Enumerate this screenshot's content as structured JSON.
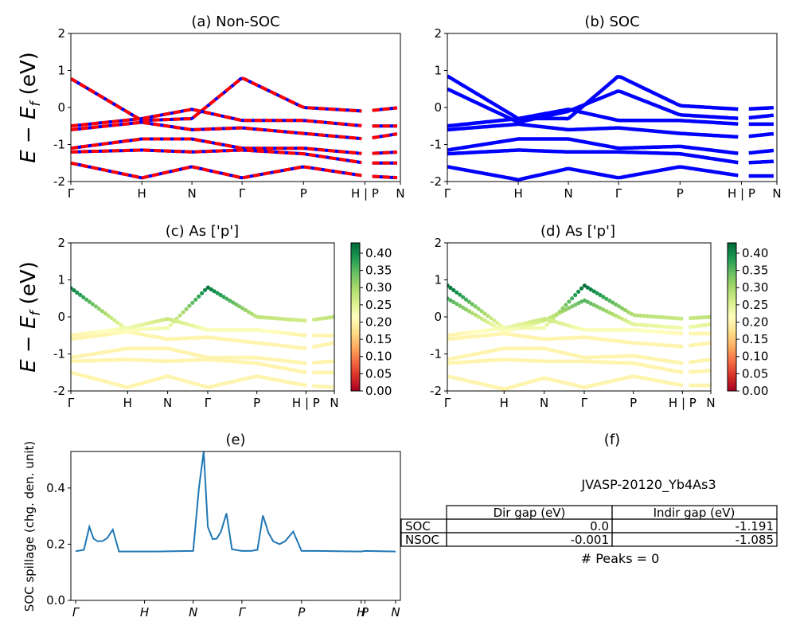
{
  "chart_data": [
    {
      "id": "a",
      "type": "line",
      "title": "(a) Non-SOC",
      "ylabel": "E − E_f (eV)",
      "ylim": [
        -2,
        2
      ],
      "yticks": [
        -2,
        -1,
        0,
        1,
        2
      ],
      "xtick_labels": [
        "Γ",
        "H",
        "N",
        "Γ",
        "P",
        "H | P",
        "N"
      ],
      "path_segments": [
        {
          "from": "Γ",
          "to": "H",
          "length": 1.0
        },
        {
          "from": "H",
          "to": "N",
          "length": 0.707
        },
        {
          "from": "N",
          "to": "Γ",
          "length": 0.707
        },
        {
          "from": "Γ",
          "to": "P",
          "length": 0.866
        },
        {
          "from": "P",
          "to": "H",
          "length": 0.866
        },
        {
          "from": "P",
          "to": "N",
          "length": 0.5
        }
      ],
      "band_colors": [
        "#0000ff",
        "#ff0000"
      ],
      "line_style": "blue solid overlaid with red dashed",
      "bands": [
        {
          "name": "",
          "x": [
            0,
            1.0,
            1.707,
            2.414,
            3.28,
            4.146,
            4.646
          ],
          "y": [
            0.78,
            -0.35,
            -0.3,
            0.8,
            0.0,
            -0.1,
            0.0
          ]
        },
        {
          "name": "",
          "x": [
            0,
            1.0,
            1.707,
            2.414,
            3.28,
            4.146,
            4.646
          ],
          "y": [
            -0.5,
            -0.3,
            -0.05,
            -0.35,
            -0.35,
            -0.5,
            -0.5
          ]
        },
        {
          "name": "",
          "x": [
            0,
            1.0,
            1.707,
            2.414,
            3.28,
            4.146,
            4.646
          ],
          "y": [
            -0.6,
            -0.4,
            -0.6,
            -0.55,
            -0.7,
            -0.85,
            -0.7
          ]
        },
        {
          "name": "",
          "x": [
            0,
            1.0,
            1.707,
            2.414,
            3.28,
            4.146,
            4.646
          ],
          "y": [
            -1.1,
            -0.85,
            -0.85,
            -1.1,
            -1.1,
            -1.25,
            -1.2
          ]
        },
        {
          "name": "",
          "x": [
            0,
            1.0,
            1.707,
            2.414,
            3.28,
            4.146,
            4.646
          ],
          "y": [
            -1.2,
            -1.15,
            -1.2,
            -1.15,
            -1.25,
            -1.5,
            -1.5
          ]
        },
        {
          "name": "",
          "x": [
            0,
            1.0,
            1.707,
            2.414,
            3.28,
            4.146,
            4.646
          ],
          "y": [
            -1.5,
            -1.9,
            -1.6,
            -1.9,
            -1.6,
            -1.85,
            -1.9
          ]
        }
      ]
    },
    {
      "id": "b",
      "type": "line",
      "title": "(b) SOC",
      "ylabel": "",
      "ylim": [
        -2,
        2
      ],
      "yticks": [
        -2,
        -1,
        0,
        1,
        2
      ],
      "xtick_labels": [
        "Γ",
        "H",
        "N",
        "Γ",
        "P",
        "H | P",
        "N"
      ],
      "band_colors": [
        "#0000ff"
      ],
      "bands": [
        {
          "name": "",
          "x": [
            0,
            1.0,
            1.707,
            2.414,
            3.28,
            4.146,
            4.646
          ],
          "y": [
            0.85,
            -0.3,
            -0.3,
            0.85,
            0.05,
            -0.05,
            0.0
          ]
        },
        {
          "name": "",
          "x": [
            0,
            1.0,
            1.707,
            2.414,
            3.28,
            4.146,
            4.646
          ],
          "y": [
            0.5,
            -0.4,
            -0.1,
            0.45,
            -0.2,
            -0.3,
            -0.2
          ]
        },
        {
          "name": "",
          "x": [
            0,
            1.0,
            1.707,
            2.414,
            3.28,
            4.146,
            4.646
          ],
          "y": [
            -0.5,
            -0.3,
            -0.05,
            -0.35,
            -0.35,
            -0.45,
            -0.45
          ]
        },
        {
          "name": "",
          "x": [
            0,
            1.0,
            1.707,
            2.414,
            3.28,
            4.146,
            4.646
          ],
          "y": [
            -0.6,
            -0.45,
            -0.6,
            -0.55,
            -0.7,
            -0.8,
            -0.7
          ]
        },
        {
          "name": "",
          "x": [
            0,
            1.0,
            1.707,
            2.414,
            3.28,
            4.146,
            4.646
          ],
          "y": [
            -1.15,
            -0.85,
            -0.85,
            -1.1,
            -1.05,
            -1.25,
            -1.15
          ]
        },
        {
          "name": "",
          "x": [
            0,
            1.0,
            1.707,
            2.414,
            3.28,
            4.146,
            4.646
          ],
          "y": [
            -1.25,
            -1.15,
            -1.2,
            -1.2,
            -1.25,
            -1.5,
            -1.45
          ]
        },
        {
          "name": "",
          "x": [
            0,
            1.0,
            1.707,
            2.414,
            3.28,
            4.146,
            4.646
          ],
          "y": [
            -1.6,
            -1.95,
            -1.65,
            -1.9,
            -1.6,
            -1.85,
            -1.85
          ]
        }
      ]
    },
    {
      "id": "c",
      "type": "scatter",
      "title": "(c)  As ['p']",
      "ylabel": "E − E_f (eV)",
      "ylim": [
        -2,
        2
      ],
      "yticks": [
        -2,
        -1,
        0,
        1,
        2
      ],
      "xtick_labels": [
        "Γ",
        "H",
        "N",
        "Γ",
        "P",
        "H | P",
        "N"
      ],
      "colorbar": {
        "cmap": "RdYlGn",
        "range": [
          0.0,
          0.43
        ],
        "tick_labels": [
          "0.00",
          "0.05",
          "0.10",
          "0.15",
          "0.20",
          "0.25",
          "0.30",
          "0.35",
          "0.40"
        ]
      },
      "note": "point colour = As p-orbital weight"
    },
    {
      "id": "d",
      "type": "scatter",
      "title": "(d) As ['p']",
      "ylabel": "",
      "ylim": [
        -2,
        2
      ],
      "yticks": [
        -2,
        -1,
        0,
        1,
        2
      ],
      "xtick_labels": [
        "Γ",
        "H",
        "N",
        "Γ",
        "P",
        "H | P",
        "N"
      ],
      "colorbar": {
        "cmap": "RdYlGn",
        "range": [
          0.0,
          0.43
        ],
        "tick_labels": [
          "0.00",
          "0.05",
          "0.10",
          "0.15",
          "0.20",
          "0.25",
          "0.30",
          "0.35",
          "0.40"
        ]
      }
    },
    {
      "id": "e",
      "type": "line",
      "title": "(e)",
      "ylabel": "SOC spillage (chg. den. unit)",
      "ylim": [
        0,
        0.53
      ],
      "yticks": [
        0.0,
        0.2,
        0.4
      ],
      "ytick_labels": [
        "0.0",
        "0.2",
        "0.4"
      ],
      "xtick_labels": [
        "Γ",
        "H",
        "N",
        "Γ",
        "P",
        "H",
        "P",
        "N"
      ],
      "color": "#1f77b4",
      "x": [
        0,
        0.12,
        0.2,
        0.26,
        0.32,
        0.4,
        0.46,
        0.54,
        0.63,
        0.72,
        0.9,
        1.2,
        1.4,
        1.707,
        1.79,
        1.86,
        1.92,
        1.99,
        2.05,
        2.11,
        2.19,
        2.27,
        2.41,
        2.55,
        2.64,
        2.72,
        2.8,
        2.87,
        2.96,
        3.04,
        3.16,
        3.28,
        3.5,
        3.8,
        4.146,
        4.2,
        4.646
      ],
      "y": [
        0.175,
        0.18,
        0.262,
        0.22,
        0.21,
        0.212,
        0.222,
        0.252,
        0.174,
        0.174,
        0.174,
        0.174,
        0.175,
        0.176,
        0.4,
        0.53,
        0.262,
        0.218,
        0.22,
        0.245,
        0.31,
        0.182,
        0.176,
        0.176,
        0.18,
        0.302,
        0.24,
        0.21,
        0.2,
        0.21,
        0.245,
        0.176,
        0.176,
        0.175,
        0.174,
        0.176,
        0.174
      ]
    },
    {
      "id": "f",
      "type": "table",
      "title": "(f)",
      "subtitle": "JVASP-20120_Yb4As3",
      "columns": [
        "Dir gap (eV)",
        "Indir gap (eV)"
      ],
      "rows": [
        {
          "label": "SOC",
          "values": [
            "0.0",
            "-1.191"
          ]
        },
        {
          "label": "NSOC",
          "values": [
            "-0.001",
            "-1.085"
          ]
        }
      ],
      "footer": "# Peaks = 0"
    }
  ]
}
